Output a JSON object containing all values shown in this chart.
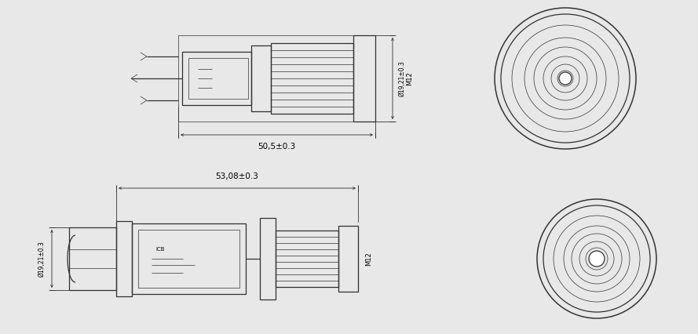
{
  "bg_color": "#e8e8e8",
  "line_color": "#303030",
  "lw_main": 0.9,
  "lw_thin": 0.5,
  "lw_dim": 0.6,
  "top": {
    "dim_length": "50,5±0.3",
    "dim_diam": "Ø19,21±0.3",
    "dim_thread": "M12"
  },
  "bottom": {
    "dim_length": "53,08±0.3",
    "dim_diam": "Ø19,21±0.3",
    "dim_thread": "M12"
  }
}
